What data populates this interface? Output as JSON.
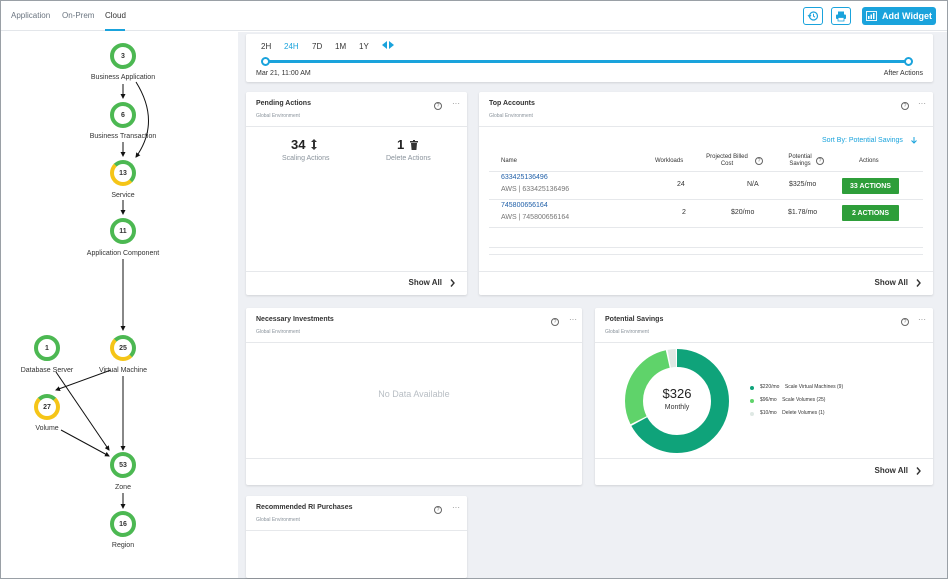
{
  "tabs": [
    {
      "label": "Application"
    },
    {
      "label": "On-Prem"
    },
    {
      "label": "Cloud"
    }
  ],
  "toolbar": {
    "add_widget_label": "Add Widget"
  },
  "colors": {
    "accent": "#1aa3dc",
    "green": "#4cb852",
    "dark_green": "#2e9e3a",
    "yellow": "#f5c518",
    "teal": "#0fa37a"
  },
  "supply_chain": {
    "nodes": [
      {
        "key": "business_application",
        "count": "3",
        "label": "Business Application"
      },
      {
        "key": "business_transaction",
        "count": "6",
        "label": "Business Transaction"
      },
      {
        "key": "service",
        "count": "13",
        "label": "Service"
      },
      {
        "key": "application_component",
        "count": "11",
        "label": "Application Component"
      },
      {
        "key": "database_server",
        "count": "1",
        "label": "Database Server"
      },
      {
        "key": "virtual_machine",
        "count": "25",
        "label": "Virtual Machine"
      },
      {
        "key": "volume",
        "count": "27",
        "label": "Volume"
      },
      {
        "key": "zone",
        "count": "53",
        "label": "Zone"
      },
      {
        "key": "region",
        "count": "16",
        "label": "Region"
      }
    ]
  },
  "timeline": {
    "ranges": [
      "2H",
      "24H",
      "7D",
      "1M",
      "1Y"
    ],
    "active": "24H",
    "start_label": "Mar 21, 11:00 AM",
    "end_label": "After Actions"
  },
  "pending_actions": {
    "title": "Pending Actions",
    "subtitle": "Global Environment",
    "scaling_count": "34",
    "scaling_label": "Scaling Actions",
    "delete_count": "1",
    "delete_label": "Delete Actions",
    "show_all": "Show All"
  },
  "top_accounts": {
    "title": "Top Accounts",
    "subtitle": "Global Environment",
    "sort_label": "Sort By: Potential Savings",
    "headers": {
      "name": "Name",
      "workloads": "Workloads",
      "billed": "Projected Billed Cost",
      "savings": "Potential Savings",
      "actions": "Actions"
    },
    "rows": [
      {
        "account": "633425136496",
        "provider": "AWS | 633425136496",
        "workloads": "24",
        "billed": "N/A",
        "savings": "$325/mo",
        "action": "33 ACTIONS"
      },
      {
        "account": "745800656164",
        "provider": "AWS | 745800656164",
        "workloads": "2",
        "billed": "$20/mo",
        "savings": "$1.78/mo",
        "action": "2 ACTIONS"
      }
    ],
    "show_all": "Show All"
  },
  "necessary_investments": {
    "title": "Necessary Investments",
    "subtitle": "Global Environment",
    "empty": "No Data Available"
  },
  "potential_savings": {
    "title": "Potential Savings",
    "subtitle": "Global Environment",
    "center_value": "$326",
    "center_label": "Monthly",
    "legend": [
      {
        "amount": "$220/mo",
        "label": "Scale Virtual Machines (9)",
        "color": "#0fa37a",
        "value": 220
      },
      {
        "amount": "$96/mo",
        "label": "Scale Volumes (25)",
        "color": "#5fd36a",
        "value": 96
      },
      {
        "amount": "$10/mo",
        "label": "Delete Volumes (1)",
        "color": "#dfe8e4",
        "value": 10
      }
    ],
    "show_all": "Show All"
  },
  "recommended_ri": {
    "title": "Recommended RI Purchases",
    "subtitle": "Global Environment"
  }
}
